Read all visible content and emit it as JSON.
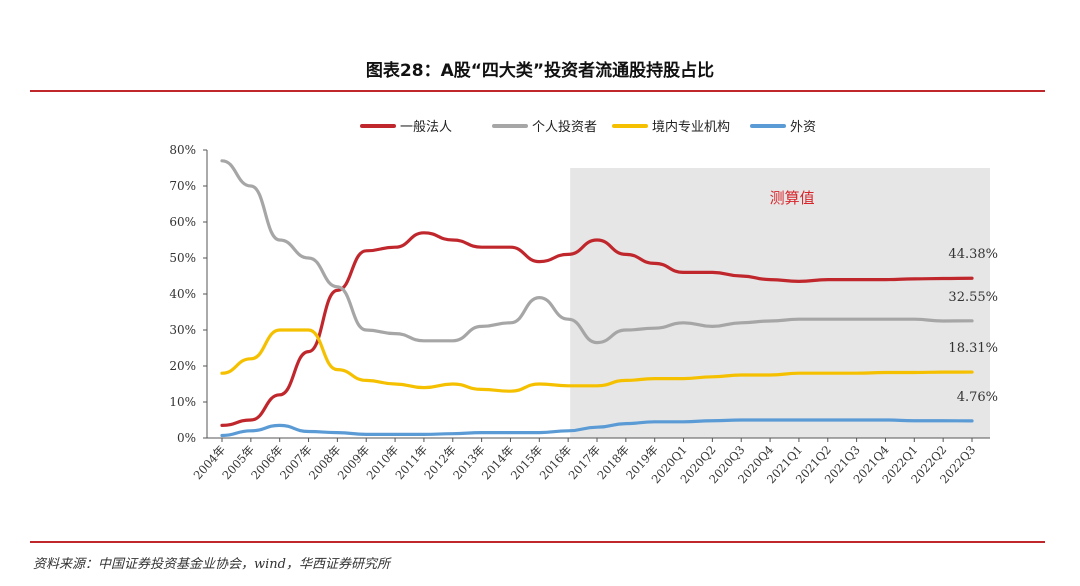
{
  "header": {
    "title": "图表28：A股“四大类”投资者流通股持股占比"
  },
  "footer": {
    "source": "资料来源：中国证券投资基金业协会，wind，华西证券研究所"
  },
  "chart_data": {
    "type": "line",
    "title": "图表28：A股“四大类”投资者流通股持股占比",
    "x": [
      "2004年",
      "2005年",
      "2006年",
      "2007年",
      "2008年",
      "2009年",
      "2010年",
      "2011年",
      "2012年",
      "2013年",
      "2014年",
      "2015年",
      "2016年",
      "2017年",
      "2018年",
      "2019年",
      "2020Q1",
      "2020Q2",
      "2020Q3",
      "2020Q4",
      "2021Q1",
      "2021Q2",
      "2021Q3",
      "2021Q4",
      "2022Q1",
      "2022Q2",
      "2022Q3"
    ],
    "y_ticks": [
      "0%",
      "10%",
      "20%",
      "30%",
      "40%",
      "50%",
      "60%",
      "70%",
      "80%"
    ],
    "ylim": [
      0,
      80
    ],
    "legend_position": "top",
    "shaded_region": {
      "from": "2016年",
      "to": "2022Q3",
      "label": "测算值",
      "color": "#e6e6e6"
    },
    "series": [
      {
        "name": "一般法人",
        "color": "#c0272d",
        "values": [
          3.5,
          5,
          12,
          24,
          41,
          52,
          53,
          57,
          55,
          53,
          53,
          49,
          51,
          55,
          51,
          48.5,
          46,
          46,
          45,
          44,
          43.5,
          44,
          44,
          44,
          44.2,
          44.3,
          44.38
        ]
      },
      {
        "name": "个人投资者",
        "color": "#a6a6a6",
        "values": [
          77,
          70,
          55,
          50,
          42,
          30,
          29,
          27,
          27,
          31,
          32,
          39,
          33,
          26.5,
          30,
          30.5,
          32,
          31,
          32,
          32.5,
          33,
          33,
          33,
          33,
          33,
          32.5,
          32.55
        ]
      },
      {
        "name": "境内专业机构",
        "color": "#f5c000",
        "values": [
          18,
          22,
          30,
          30,
          19,
          16,
          15,
          14,
          15,
          13.5,
          13,
          15,
          14.5,
          14.5,
          16,
          16.5,
          16.5,
          17,
          17.5,
          17.5,
          18,
          18,
          18,
          18.2,
          18.2,
          18.3,
          18.31
        ]
      },
      {
        "name": "外资",
        "color": "#5b9bd5",
        "values": [
          0.7,
          2,
          3.5,
          1.8,
          1.5,
          1,
          1,
          1,
          1.2,
          1.5,
          1.5,
          1.5,
          2,
          3,
          4,
          4.5,
          4.5,
          4.8,
          5,
          5,
          5,
          5,
          5,
          5,
          4.8,
          4.8,
          4.76
        ]
      }
    ],
    "end_labels": [
      "44.38%",
      "32.55%",
      "18.31%",
      "4.76%"
    ]
  }
}
